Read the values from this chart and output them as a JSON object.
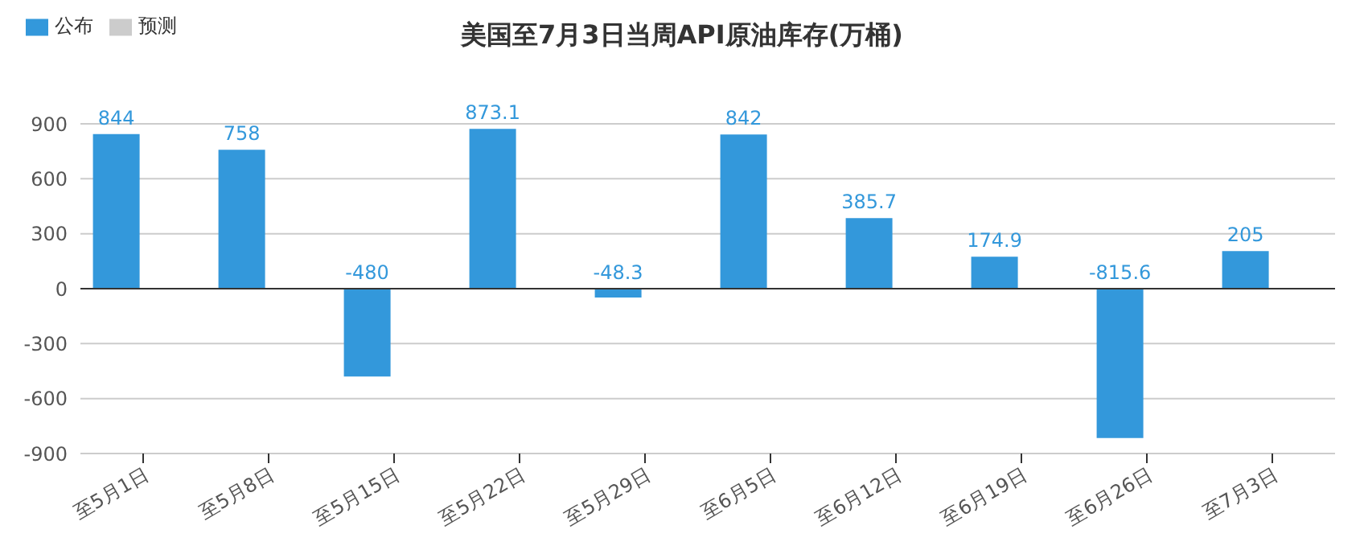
{
  "chart_data": {
    "type": "bar",
    "title": "美国至7月3日当周API原油库存(万桶)",
    "categories": [
      "至5月1日",
      "至5月8日",
      "至5月15日",
      "至5月22日",
      "至5月29日",
      "至6月5日",
      "至6月12日",
      "至6月19日",
      "至6月26日",
      "至7月3日"
    ],
    "series": [
      {
        "name": "公布",
        "color": "#3398db",
        "values": [
          844,
          758,
          -480,
          873.1,
          -48.3,
          842,
          385.7,
          174.9,
          -815.6,
          205
        ]
      },
      {
        "name": "预测",
        "color": "#cccccc",
        "values": [
          null,
          null,
          null,
          null,
          null,
          null,
          null,
          null,
          null,
          null
        ]
      }
    ],
    "ylim": [
      -900,
      900
    ],
    "yticks": [
      -900,
      -600,
      -300,
      0,
      300,
      600,
      900
    ],
    "grid": "y",
    "legend": "top left",
    "data_labels": true
  }
}
